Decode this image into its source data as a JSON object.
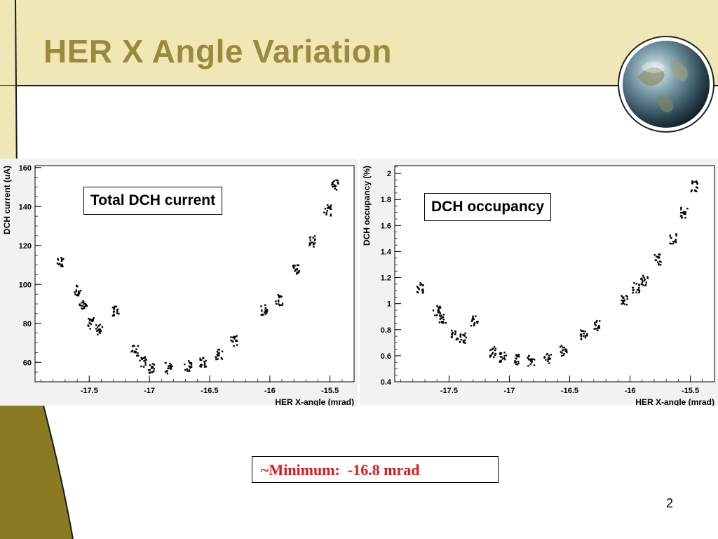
{
  "slide": {
    "title": "HER X Angle Variation",
    "result_text": "~Minimum:  -16.8 mrad",
    "page_number": "2",
    "colors": {
      "title": "#9c8a3c",
      "accent_band": "#efe8b6",
      "accent_dark": "#8a7a22",
      "result_text": "#e0181b"
    }
  },
  "left_plot": {
    "callout": "Total DCH current"
  },
  "right_plot": {
    "callout": "DCH occupancy"
  },
  "chart_data": [
    {
      "type": "scatter",
      "title": "Total DCH current",
      "xlabel": "HER X-angle (mrad)",
      "ylabel": "DCH current (uA)",
      "xlim": [
        -17.95,
        -15.3
      ],
      "ylim": [
        50,
        161
      ],
      "xticks": [
        -17.5,
        -17,
        -16.5,
        -16,
        -15.5
      ],
      "yticks": [
        60,
        80,
        100,
        120,
        140,
        160
      ],
      "grid": false,
      "clusters": [
        {
          "x": -17.74,
          "y": 111
        },
        {
          "x": -17.6,
          "y": 97
        },
        {
          "x": -17.55,
          "y": 89
        },
        {
          "x": -17.48,
          "y": 80
        },
        {
          "x": -17.42,
          "y": 77
        },
        {
          "x": -17.28,
          "y": 86
        },
        {
          "x": -17.12,
          "y": 66
        },
        {
          "x": -17.05,
          "y": 60
        },
        {
          "x": -16.98,
          "y": 57
        },
        {
          "x": -16.84,
          "y": 57
        },
        {
          "x": -16.68,
          "y": 58
        },
        {
          "x": -16.55,
          "y": 60
        },
        {
          "x": -16.42,
          "y": 64
        },
        {
          "x": -16.3,
          "y": 71
        },
        {
          "x": -16.05,
          "y": 87
        },
        {
          "x": -15.92,
          "y": 92
        },
        {
          "x": -15.78,
          "y": 108
        },
        {
          "x": -15.65,
          "y": 122
        },
        {
          "x": -15.52,
          "y": 138
        },
        {
          "x": -15.46,
          "y": 151
        }
      ]
    },
    {
      "type": "scatter",
      "title": "DCH occupancy",
      "xlabel": "HER X-angle (mrad)",
      "ylabel": "DCH occupancy (%)",
      "xlim": [
        -17.95,
        -15.3
      ],
      "ylim": [
        0.4,
        2.06
      ],
      "xticks": [
        -17.5,
        -17,
        -16.5,
        -16,
        -15.5
      ],
      "yticks": [
        0.4,
        0.6,
        0.8,
        1,
        1.2,
        1.4,
        1.6,
        1.8,
        2
      ],
      "grid": false,
      "clusters": [
        {
          "x": -17.74,
          "y": 1.12
        },
        {
          "x": -17.6,
          "y": 0.95
        },
        {
          "x": -17.55,
          "y": 0.88
        },
        {
          "x": -17.45,
          "y": 0.76
        },
        {
          "x": -17.38,
          "y": 0.74
        },
        {
          "x": -17.29,
          "y": 0.87
        },
        {
          "x": -17.14,
          "y": 0.63
        },
        {
          "x": -17.05,
          "y": 0.59
        },
        {
          "x": -16.95,
          "y": 0.57
        },
        {
          "x": -16.82,
          "y": 0.56
        },
        {
          "x": -16.68,
          "y": 0.58
        },
        {
          "x": -16.55,
          "y": 0.64
        },
        {
          "x": -16.38,
          "y": 0.76
        },
        {
          "x": -16.28,
          "y": 0.83
        },
        {
          "x": -16.05,
          "y": 1.03
        },
        {
          "x": -15.95,
          "y": 1.12
        },
        {
          "x": -15.88,
          "y": 1.18
        },
        {
          "x": -15.77,
          "y": 1.34
        },
        {
          "x": -15.64,
          "y": 1.5
        },
        {
          "x": -15.55,
          "y": 1.7
        },
        {
          "x": -15.47,
          "y": 1.9
        }
      ]
    }
  ]
}
